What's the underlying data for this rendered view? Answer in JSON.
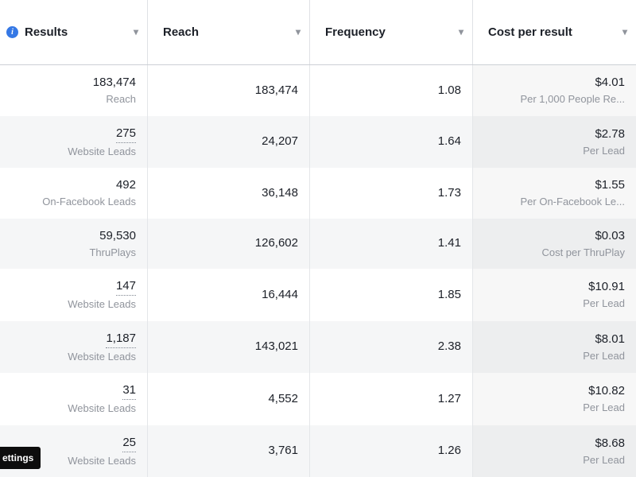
{
  "colors": {
    "accent_blue": "#3578E5",
    "alt_row_bg": "#F5F6F7",
    "muted_text": "#90949C",
    "text": "#1C2028"
  },
  "icons": {
    "chevron_down": "▾",
    "info": "i"
  },
  "tooltip": {
    "label": "ettings"
  },
  "table": {
    "columns": [
      {
        "label": "Results"
      },
      {
        "label": "Reach"
      },
      {
        "label": "Frequency"
      },
      {
        "label": "Cost per result"
      }
    ],
    "rows": [
      {
        "results": "183,474",
        "results_label": "Reach",
        "underline": false,
        "reach": "183,474",
        "frequency": "1.08",
        "cost": "$4.01",
        "cost_label": "Per 1,000 People Re..."
      },
      {
        "results": "275",
        "results_label": "Website Leads",
        "underline": true,
        "reach": "24,207",
        "frequency": "1.64",
        "cost": "$2.78",
        "cost_label": "Per Lead"
      },
      {
        "results": "492",
        "results_label": "On-Facebook Leads",
        "underline": false,
        "reach": "36,148",
        "frequency": "1.73",
        "cost": "$1.55",
        "cost_label": "Per On-Facebook Le..."
      },
      {
        "results": "59,530",
        "results_label": "ThruPlays",
        "underline": false,
        "reach": "126,602",
        "frequency": "1.41",
        "cost": "$0.03",
        "cost_label": "Cost per ThruPlay"
      },
      {
        "results": "147",
        "results_label": "Website Leads",
        "underline": true,
        "reach": "16,444",
        "frequency": "1.85",
        "cost": "$10.91",
        "cost_label": "Per Lead"
      },
      {
        "results": "1,187",
        "results_label": "Website Leads",
        "underline": true,
        "reach": "143,021",
        "frequency": "2.38",
        "cost": "$8.01",
        "cost_label": "Per Lead"
      },
      {
        "results": "31",
        "results_label": "Website Leads",
        "underline": true,
        "reach": "4,552",
        "frequency": "1.27",
        "cost": "$10.82",
        "cost_label": "Per Lead"
      },
      {
        "results": "25",
        "results_label": "Website Leads",
        "underline": true,
        "reach": "3,761",
        "frequency": "1.26",
        "cost": "$8.68",
        "cost_label": "Per Lead"
      }
    ]
  }
}
